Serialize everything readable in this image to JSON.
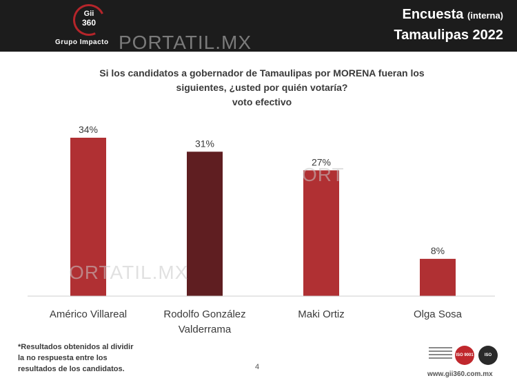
{
  "header": {
    "title": "Encuesta",
    "title_note": "(interna)",
    "subtitle": "Tamaulipas 2022",
    "logo": {
      "line1": "Gii",
      "line2": "360",
      "tagline": "Grupo Impacto"
    }
  },
  "watermark": {
    "text_top": "PORTATIL.MX",
    "text_mid": "ORT",
    "text_bottom": "ORTATIL.MX"
  },
  "question": {
    "line1": "Si los candidatos a gobernador de Tamaulipas por MORENA fueran los",
    "line2": "siguientes, ¿usted por quién votaría?",
    "line3": "voto efectivo"
  },
  "chart_data": {
    "type": "bar",
    "categories": [
      [
        "Américo Villareal"
      ],
      [
        "Rodolfo González",
        "Valderrama"
      ],
      [
        "Maki Ortiz"
      ],
      [
        "Olga Sosa"
      ]
    ],
    "values": [
      34,
      31,
      27,
      8
    ],
    "labels": [
      "34%",
      "31%",
      "27%",
      "8%"
    ],
    "colors": [
      "#b03033",
      "#5f1e21",
      "#b03033",
      "#b03033"
    ],
    "ylim": [
      0,
      34
    ],
    "grid": false
  },
  "footnote": {
    "line1": "*Resultados obtenidos al dividir",
    "line2": "la no respuesta entre los",
    "line3": "resultados de los candidatos."
  },
  "page_number": "4",
  "footer": {
    "url": "www.gii360.com.mx",
    "badge1": "ISO 9001",
    "badge2": "ISO 27001"
  }
}
